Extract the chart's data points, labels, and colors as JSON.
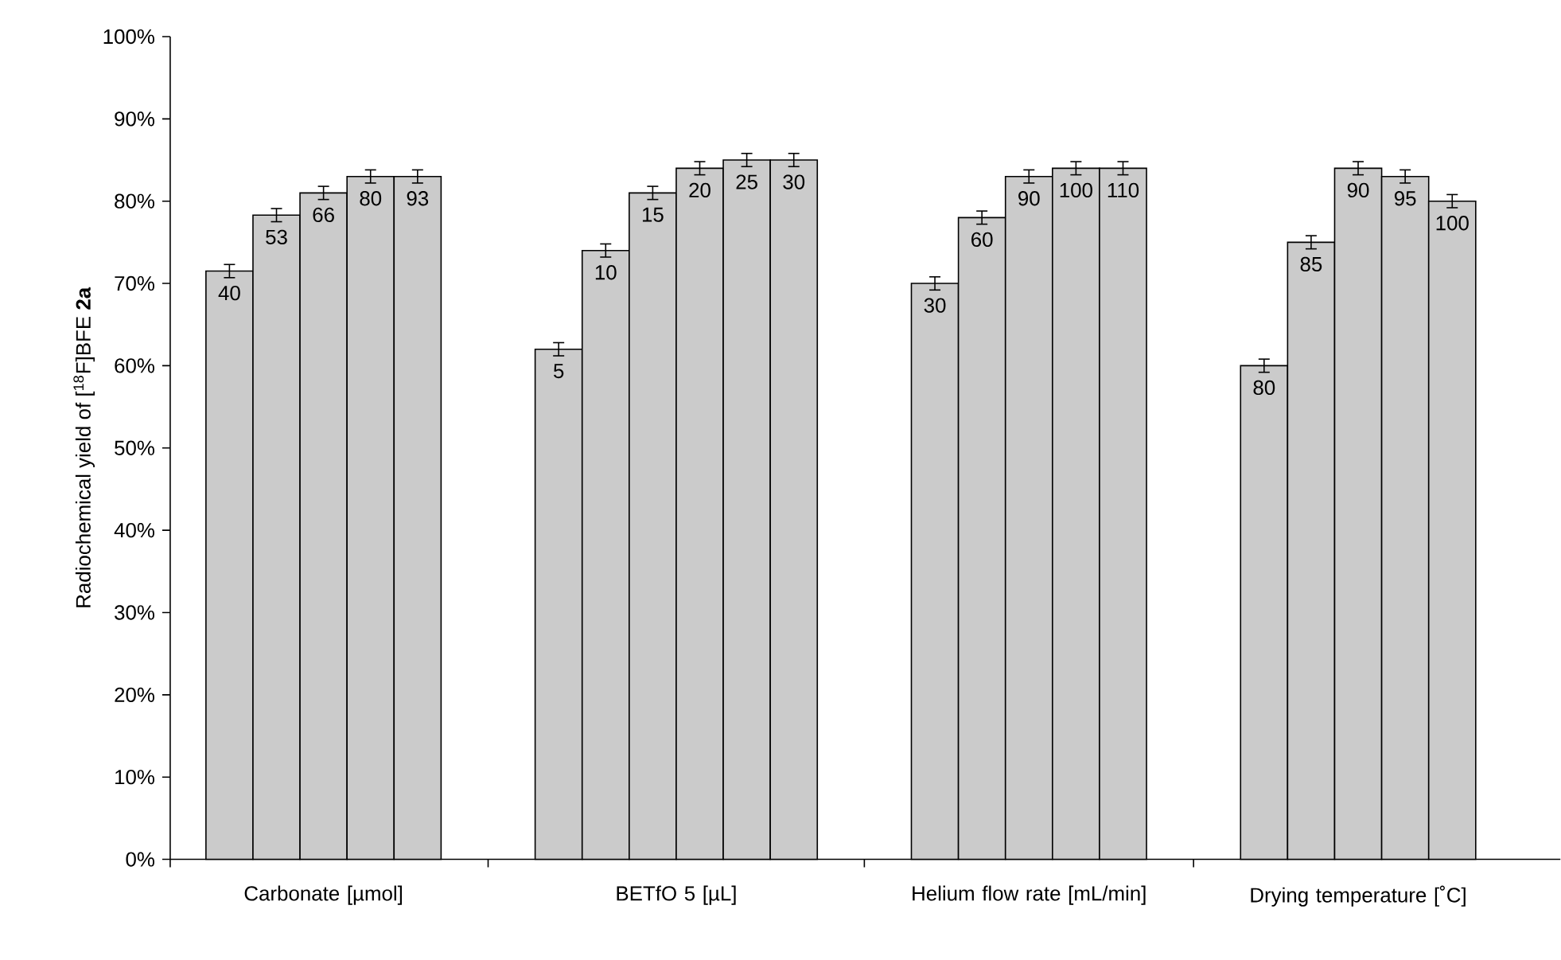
{
  "chart_data": {
    "type": "bar",
    "ylabel": "Radiochemical yield of [$^{18}$F]BFE **2a**",
    "categories": [
      "40",
      "53",
      "66",
      "80",
      "93",
      null,
      null,
      "5",
      "10",
      "15",
      "20",
      "25",
      "30",
      null,
      null,
      "30",
      "60",
      "90",
      "100",
      "110",
      null,
      null,
      "80",
      "85",
      "90",
      "95",
      "100"
    ],
    "values": [
      71.5,
      78.3,
      81,
      83,
      83,
      null,
      null,
      62,
      74,
      81,
      84,
      85,
      85,
      null,
      null,
      70,
      78,
      83,
      84,
      84,
      null,
      null,
      60,
      75,
      84,
      83,
      80
    ],
    "errors": [
      0.8,
      0.8,
      0.8,
      0.8,
      0.8,
      null,
      null,
      0.8,
      0.8,
      0.8,
      0.8,
      0.8,
      0.8,
      null,
      null,
      0.8,
      0.8,
      0.8,
      0.8,
      0.8,
      null,
      null,
      0.8,
      0.8,
      0.8,
      0.8,
      0.8
    ],
    "color": "#cbcbcb",
    "ylim": [
      0,
      100
    ],
    "yticks": [
      {
        "value": 0,
        "label": "0%"
      },
      {
        "value": 10,
        "label": "10%"
      },
      {
        "value": 20,
        "label": "20%"
      },
      {
        "value": 30,
        "label": "30%"
      },
      {
        "value": 40,
        "label": "40%"
      },
      {
        "value": 50,
        "label": "50%"
      },
      {
        "value": 60,
        "label": "60%"
      },
      {
        "value": 70,
        "label": "70%"
      },
      {
        "value": 80,
        "label": "80%"
      },
      {
        "value": 90,
        "label": "90%"
      },
      {
        "value": 100,
        "label": "100%"
      }
    ],
    "annotations": [
      "Carbonate [µmol]",
      "BETfO 5 [µL]",
      "Helium flow rate [mL/min]",
      "Drying temperature [˚C]"
    ],
    "grid": false
  }
}
